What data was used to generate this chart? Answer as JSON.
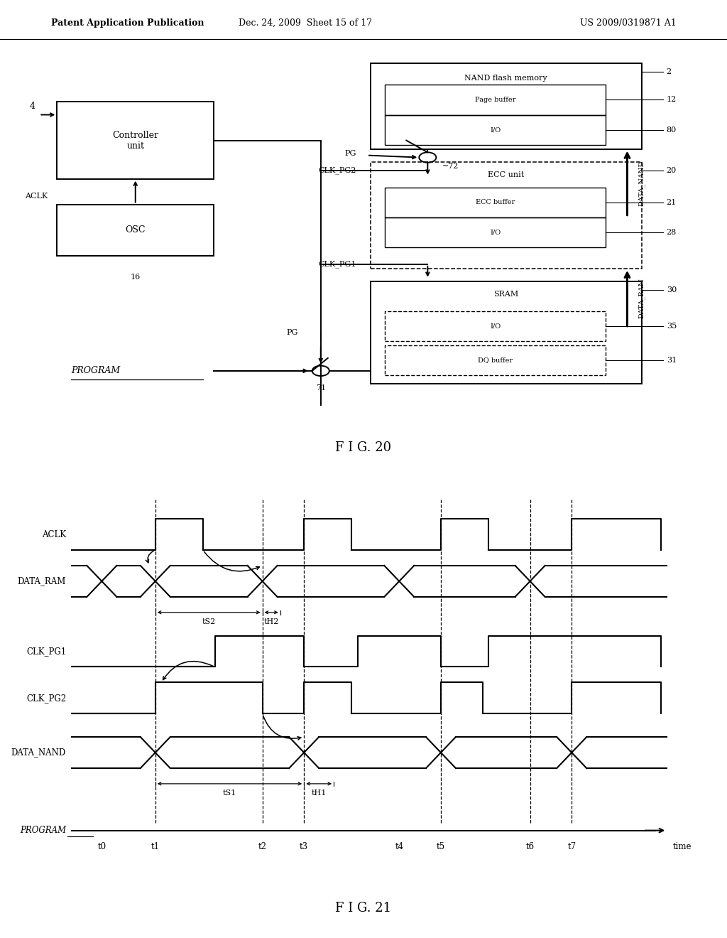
{
  "header_left": "Patent Application Publication",
  "header_center": "Dec. 24, 2009  Sheet 15 of 17",
  "header_right": "US 2009/0319871 A1",
  "fig20_caption": "F I G. 20",
  "fig21_caption": "F I G. 21",
  "bg_color": "#ffffff"
}
